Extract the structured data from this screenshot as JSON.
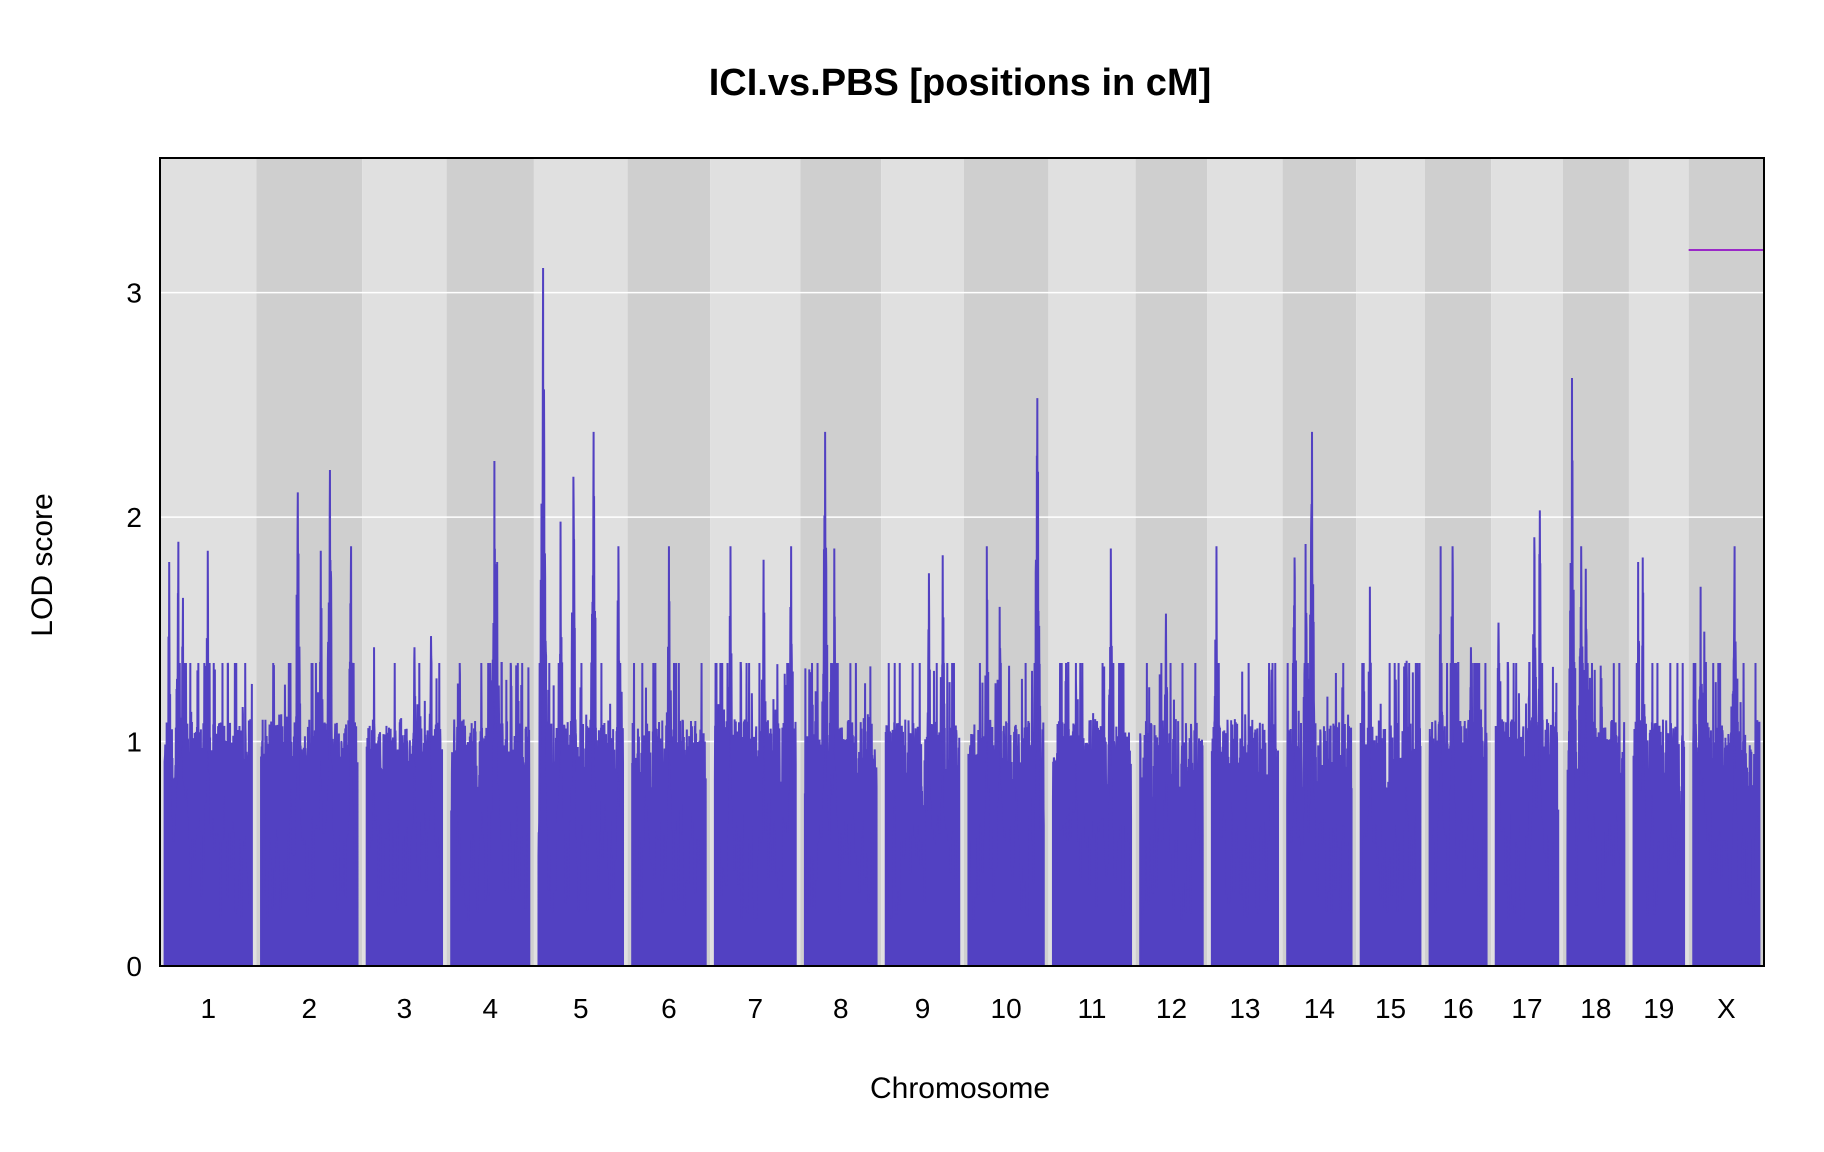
{
  "chart_data": {
    "type": "line",
    "title": "ICI.vs.PBS [positions in cM]",
    "xlabel": "Chromosome",
    "ylabel": "LOD score",
    "ylim": [
      0,
      3.6
    ],
    "yticks": [
      0,
      1,
      2,
      3
    ],
    "grid": true,
    "colors": {
      "line": "#5241c2",
      "threshold": "#9a28c8",
      "band_light": "#e0e0e0",
      "band_dark": "#cfcfcf",
      "grid": "#ffffff"
    },
    "threshold": {
      "chromosome": "X",
      "value": 3.19
    },
    "chromosomes": [
      {
        "name": "1",
        "length_cM": 95,
        "peaks": [
          {
            "pos": 15,
            "lod": 1.89
          },
          {
            "pos": 47,
            "lod": 1.85
          },
          {
            "pos": 20,
            "lod": 1.64
          },
          {
            "pos": 5,
            "lod": 1.8
          }
        ]
      },
      {
        "name": "2",
        "length_cM": 105,
        "peaks": [
          {
            "pos": 40,
            "lod": 2.11
          },
          {
            "pos": 75,
            "lod": 2.21
          },
          {
            "pos": 65,
            "lod": 1.85
          },
          {
            "pos": 98,
            "lod": 1.87
          }
        ]
      },
      {
        "name": "3",
        "length_cM": 82,
        "peaks": [
          {
            "pos": 70,
            "lod": 1.47
          },
          {
            "pos": 52,
            "lod": 1.42
          },
          {
            "pos": 8,
            "lod": 1.42
          }
        ]
      },
      {
        "name": "4",
        "length_cM": 85,
        "peaks": [
          {
            "pos": 47,
            "lod": 2.25
          },
          {
            "pos": 50,
            "lod": 1.8
          }
        ]
      },
      {
        "name": "5",
        "length_cM": 92,
        "peaks": [
          {
            "pos": 5,
            "lod": 3.11
          },
          {
            "pos": 60,
            "lod": 2.38
          },
          {
            "pos": 38,
            "lod": 2.18
          },
          {
            "pos": 24,
            "lod": 1.98
          },
          {
            "pos": 87,
            "lod": 1.87
          }
        ]
      },
      {
        "name": "6",
        "length_cM": 80,
        "peaks": [
          {
            "pos": 40,
            "lod": 1.87
          },
          {
            "pos": 15,
            "lod": 1.24
          }
        ]
      },
      {
        "name": "7",
        "length_cM": 88,
        "peaks": [
          {
            "pos": 17,
            "lod": 1.87
          },
          {
            "pos": 53,
            "lod": 1.81
          },
          {
            "pos": 83,
            "lod": 1.87
          }
        ]
      },
      {
        "name": "8",
        "length_cM": 78,
        "peaks": [
          {
            "pos": 22,
            "lod": 2.38
          },
          {
            "pos": 32,
            "lod": 1.86
          }
        ]
      },
      {
        "name": "9",
        "length_cM": 80,
        "peaks": [
          {
            "pos": 47,
            "lod": 1.75
          },
          {
            "pos": 62,
            "lod": 1.83
          }
        ]
      },
      {
        "name": "10",
        "length_cM": 82,
        "peaks": [
          {
            "pos": 75,
            "lod": 2.53
          },
          {
            "pos": 20,
            "lod": 1.87
          },
          {
            "pos": 34,
            "lod": 1.6
          }
        ]
      },
      {
        "name": "11",
        "length_cM": 85,
        "peaks": [
          {
            "pos": 63,
            "lod": 1.86
          },
          {
            "pos": 25,
            "lod": 1.28
          }
        ]
      },
      {
        "name": "12",
        "length_cM": 68,
        "peaks": [
          {
            "pos": 28,
            "lod": 1.57
          },
          {
            "pos": 60,
            "lod": 1.24
          }
        ]
      },
      {
        "name": "13",
        "length_cM": 72,
        "peaks": [
          {
            "pos": 5,
            "lod": 1.87
          },
          {
            "pos": 65,
            "lod": 1.32
          }
        ]
      },
      {
        "name": "14",
        "length_cM": 70,
        "peaks": [
          {
            "pos": 27,
            "lod": 2.38
          },
          {
            "pos": 20,
            "lod": 1.88
          },
          {
            "pos": 8,
            "lod": 1.82
          }
        ]
      },
      {
        "name": "15",
        "length_cM": 65,
        "peaks": [
          {
            "pos": 10,
            "lod": 1.69
          },
          {
            "pos": 50,
            "lod": 1.36
          }
        ]
      },
      {
        "name": "16",
        "length_cM": 62,
        "peaks": [
          {
            "pos": 12,
            "lod": 1.87
          },
          {
            "pos": 25,
            "lod": 1.87
          },
          {
            "pos": 45,
            "lod": 1.42
          }
        ]
      },
      {
        "name": "17",
        "length_cM": 68,
        "peaks": [
          {
            "pos": 48,
            "lod": 2.03
          },
          {
            "pos": 42,
            "lod": 1.91
          },
          {
            "pos": 3,
            "lod": 1.53
          }
        ]
      },
      {
        "name": "18",
        "length_cM": 62,
        "peaks": [
          {
            "pos": 5,
            "lod": 2.62
          },
          {
            "pos": 15,
            "lod": 1.87
          },
          {
            "pos": 20,
            "lod": 1.77
          }
        ]
      },
      {
        "name": "19",
        "length_cM": 55,
        "peaks": [
          {
            "pos": 10,
            "lod": 1.82
          },
          {
            "pos": 5,
            "lod": 1.8
          }
        ]
      },
      {
        "name": "X",
        "length_cM": 72,
        "peaks": [
          {
            "pos": 8,
            "lod": 1.69
          },
          {
            "pos": 45,
            "lod": 1.87
          },
          {
            "pos": 12,
            "lod": 1.49
          }
        ]
      }
    ]
  }
}
